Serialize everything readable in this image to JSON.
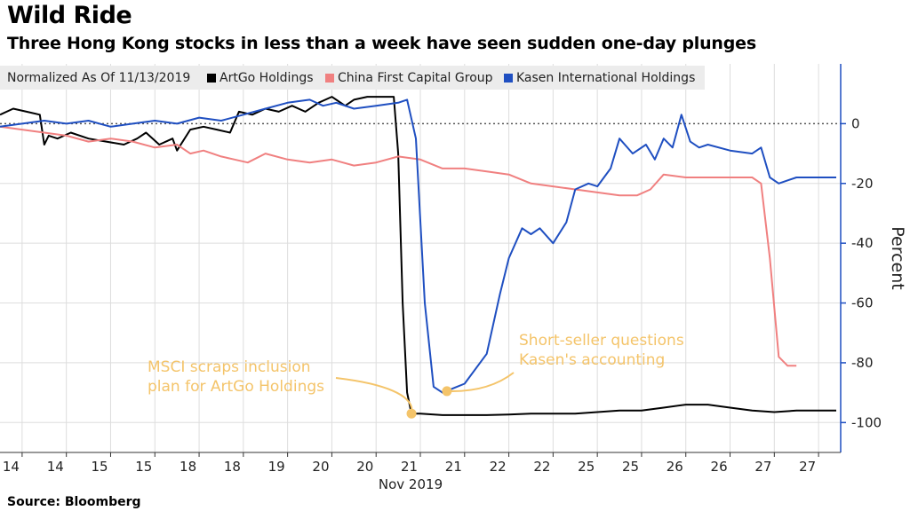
{
  "chart_data": {
    "type": "line",
    "title": "Wild Ride",
    "subtitle": "Three Hong Kong stocks in less than a week have seen sudden one-day plunges",
    "source": "Source: Bloomberg",
    "legend_label": "Normalized As Of 11/13/2019",
    "legend_placement": "top",
    "ylabel": "Percent",
    "xlabel": "Nov 2019",
    "ylim": [
      -110,
      20
    ],
    "yticks": [
      0,
      -20,
      -40,
      -60,
      -80,
      -100
    ],
    "x_ticks": [
      "14",
      "14",
      "15",
      "15",
      "18",
      "18",
      "19",
      "20",
      "20",
      "21",
      "21",
      "22",
      "22",
      "25",
      "25",
      "26",
      "26",
      "27",
      "27"
    ],
    "xlim": [
      0,
      19
    ],
    "zero_line": "dotted",
    "grid": true,
    "series": [
      {
        "name": "ArtGo Holdings",
        "color": "#000000",
        "x": [
          0,
          0.3,
          0.6,
          0.9,
          1.0,
          1.1,
          1.3,
          1.6,
          2.0,
          2.4,
          2.8,
          3.1,
          3.3,
          3.6,
          3.9,
          4.0,
          4.3,
          4.6,
          4.9,
          5.2,
          5.4,
          5.7,
          6.0,
          6.3,
          6.6,
          6.9,
          7.2,
          7.5,
          7.8,
          8.0,
          8.3,
          8.6,
          8.9,
          9.0,
          9.1,
          9.2,
          9.3,
          9.5,
          10.0,
          10.5,
          11.0,
          11.5,
          12.0,
          12.5,
          13.0,
          13.5,
          14.0,
          14.5,
          15.0,
          15.5,
          16.0,
          16.5,
          17.0,
          17.5,
          18.0,
          18.5,
          18.9
        ],
        "values": [
          3,
          5,
          4,
          3,
          -7,
          -4,
          -5,
          -3,
          -5,
          -6,
          -7,
          -5,
          -3,
          -7,
          -5,
          -9,
          -2,
          -1,
          -2,
          -3,
          4,
          3,
          5,
          4,
          6,
          4,
          7,
          9,
          6,
          8,
          9,
          9,
          9,
          -10,
          -60,
          -90,
          -97,
          -97,
          -97.5,
          -97.5,
          -97.5,
          -97.3,
          -97,
          -97,
          -97,
          -96.5,
          -96,
          -96,
          -95,
          -94,
          -94,
          -95,
          -96,
          -96.5,
          -96,
          -96,
          -96
        ]
      },
      {
        "name": "China First Capital Group",
        "color": "#f08080",
        "x": [
          0,
          0.5,
          1.0,
          1.5,
          2.0,
          2.5,
          3.0,
          3.5,
          4.0,
          4.3,
          4.6,
          5.0,
          5.3,
          5.6,
          6.0,
          6.5,
          7.0,
          7.5,
          8.0,
          8.5,
          9.0,
          9.5,
          10.0,
          10.5,
          11.0,
          11.5,
          12.0,
          12.5,
          13.0,
          13.5,
          14.0,
          14.4,
          14.7,
          15.0,
          15.5,
          16.0,
          16.5,
          17.0,
          17.2,
          17.4,
          17.6,
          17.8,
          18.0
        ],
        "values": [
          -1,
          -2,
          -3,
          -4,
          -6,
          -5,
          -6,
          -8,
          -7,
          -10,
          -9,
          -11,
          -12,
          -13,
          -10,
          -12,
          -13,
          -12,
          -14,
          -13,
          -11,
          -12,
          -15,
          -15,
          -16,
          -17,
          -20,
          -21,
          -22,
          -23,
          -24,
          -24,
          -22,
          -17,
          -18,
          -18,
          -18,
          -18,
          -20,
          -45,
          -78,
          -81,
          -81
        ]
      },
      {
        "name": "Kasen International Holdings",
        "color": "#1f4fc1",
        "x": [
          0,
          0.5,
          1.0,
          1.5,
          2.0,
          2.5,
          3.0,
          3.5,
          4.0,
          4.5,
          5.0,
          5.5,
          6.0,
          6.5,
          7.0,
          7.3,
          7.6,
          8.0,
          8.5,
          9.0,
          9.2,
          9.4,
          9.6,
          9.8,
          10.0,
          10.5,
          11.0,
          11.3,
          11.5,
          11.8,
          12.0,
          12.2,
          12.5,
          12.8,
          13.0,
          13.3,
          13.5,
          13.8,
          14.0,
          14.3,
          14.6,
          14.8,
          15.0,
          15.2,
          15.4,
          15.6,
          15.8,
          16.0,
          16.5,
          17.0,
          17.2,
          17.4,
          17.6,
          18.0,
          18.5,
          18.9
        ],
        "values": [
          -1,
          0,
          1,
          0,
          1,
          -1,
          0,
          1,
          0,
          2,
          1,
          3,
          5,
          7,
          8,
          6,
          7,
          5,
          6,
          7,
          8,
          -5,
          -60,
          -88,
          -90,
          -87,
          -77,
          -57,
          -45,
          -35,
          -37,
          -35,
          -40,
          -33,
          -22,
          -20,
          -21,
          -15,
          -5,
          -10,
          -7,
          -12,
          -5,
          -8,
          3,
          -6,
          -8,
          -7,
          -9,
          -10,
          -8,
          -18,
          -20,
          -18,
          -18,
          -18
        ]
      }
    ],
    "annotations": [
      {
        "lines": [
          "MSCI scraps inclusion",
          "plan for ArtGo Holdings"
        ],
        "x": 9.3,
        "y": -97
      },
      {
        "lines": [
          "Short-seller questions",
          "Kasen's accounting"
        ],
        "x": 10.1,
        "y": -89.5
      }
    ]
  }
}
